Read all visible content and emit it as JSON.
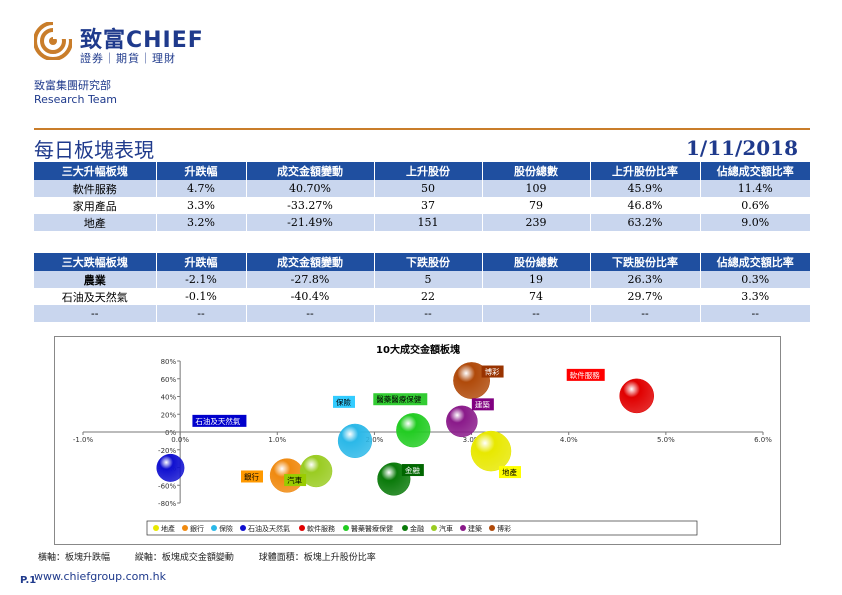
{
  "logo": {
    "name": "致富CHIEF",
    "tagline": "證券｜期貨｜理財"
  },
  "dept": {
    "line1": "致富集團研究部",
    "line2": "Research Team"
  },
  "page": {
    "title": "每日板塊表現",
    "date": "1/11/2018",
    "page_no": "P.1",
    "url": "www.chiefgroup.com.hk"
  },
  "table_up": {
    "headers": [
      "三大升幅板塊",
      "升跌幅",
      "成交金額變動",
      "上升股份",
      "股份總數",
      "上升股份比率",
      "佔總成交額比率"
    ],
    "rows": [
      [
        "軟件服務",
        "4.7%",
        "40.70%",
        "50",
        "109",
        "45.9%",
        "11.4%"
      ],
      [
        "家用產品",
        "3.3%",
        "-33.27%",
        "37",
        "79",
        "46.8%",
        "0.6%"
      ],
      [
        "地產",
        "3.2%",
        "-21.49%",
        "151",
        "239",
        "63.2%",
        "9.0%"
      ]
    ]
  },
  "table_down": {
    "headers": [
      "三大跌幅板塊",
      "升跌幅",
      "成交金額變動",
      "下跌股份",
      "股份總數",
      "下跌股份比率",
      "佔總成交額比率"
    ],
    "rows": [
      [
        "農業",
        "-2.1%",
        "-27.8%",
        "5",
        "19",
        "26.3%",
        "0.3%"
      ],
      [
        "石油及天然氣",
        "-0.1%",
        "-40.4%",
        "22",
        "74",
        "29.7%",
        "3.3%"
      ],
      [
        "--",
        "--",
        "--",
        "--",
        "--",
        "--",
        "--"
      ]
    ]
  },
  "footnote": {
    "x": "橫軸：板塊升跌幅",
    "y": "縱軸：板塊成交金額變動",
    "size": "球體面積：板塊上升股份比率"
  },
  "chart_data": {
    "type": "scatter",
    "title": "10大成交金額板塊",
    "xlim": [
      -0.01,
      0.06
    ],
    "ylim": [
      -0.8,
      0.8
    ],
    "x_ticks": [
      "-1.0%",
      "0.0%",
      "1.0%",
      "2.0%",
      "3.0%",
      "4.0%",
      "5.0%",
      "6.0%"
    ],
    "y_ticks": [
      "80%",
      "60%",
      "40%",
      "20%",
      "0%",
      "-20%",
      "-40%",
      "-60%",
      "-80%"
    ],
    "bubble_scale": "area = 上升股份比率",
    "series": [
      {
        "name": "地產",
        "x": 0.032,
        "y": -0.215,
        "size": 0.632,
        "color": "#e8e800",
        "label_color": "#ffff00",
        "label_text_color": "#000000"
      },
      {
        "name": "銀行",
        "x": 0.011,
        "y": -0.49,
        "size": 0.45,
        "color": "#f08a10",
        "label_color": "#ff9900",
        "label_text_color": "#000000"
      },
      {
        "name": "保險",
        "x": 0.018,
        "y": -0.1,
        "size": 0.45,
        "color": "#2bb8e8",
        "label_color": "#33ccff",
        "label_text_color": "#000000"
      },
      {
        "name": "石油及天然氣",
        "x": -0.001,
        "y": -0.404,
        "size": 0.297,
        "color": "#1010d0",
        "label_color": "#0000cc",
        "label_text_color": "#ffffff"
      },
      {
        "name": "軟件服務",
        "x": 0.047,
        "y": 0.407,
        "size": 0.459,
        "color": "#e00000",
        "label_color": "#ff0000",
        "label_text_color": "#ffffff"
      },
      {
        "name": "醫藥醫療保健",
        "x": 0.024,
        "y": 0.02,
        "size": 0.45,
        "color": "#22cc22",
        "label_color": "#33cc33",
        "label_text_color": "#000000"
      },
      {
        "name": "金融",
        "x": 0.022,
        "y": -0.53,
        "size": 0.42,
        "color": "#0a7a0a",
        "label_color": "#006600",
        "label_text_color": "#ffffff"
      },
      {
        "name": "汽車",
        "x": 0.014,
        "y": -0.44,
        "size": 0.4,
        "color": "#9acc22",
        "label_color": "#99cc00",
        "label_text_color": "#000000"
      },
      {
        "name": "建築",
        "x": 0.029,
        "y": 0.12,
        "size": 0.38,
        "color": "#8a1a8a",
        "label_color": "#800080",
        "label_text_color": "#ffffff"
      },
      {
        "name": "博彩",
        "x": 0.03,
        "y": 0.58,
        "size": 0.52,
        "color": "#b04a0a",
        "label_color": "#993300",
        "label_text_color": "#ffffff"
      }
    ],
    "legend_placement": "bottom"
  }
}
